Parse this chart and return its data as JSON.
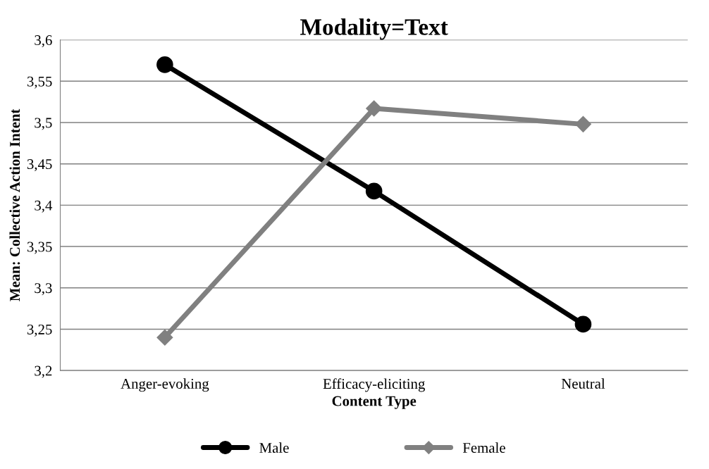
{
  "chart_data": {
    "type": "line",
    "title": "Modality=Text",
    "xlabel": "Content Type",
    "ylabel": "Mean: Collective Action Intent",
    "categories": [
      "Anger-evoking",
      "Efficacy-eliciting",
      "Neutral"
    ],
    "series": [
      {
        "name": "Male",
        "color": "#000000",
        "marker": "circle",
        "values": [
          3.57,
          3.417,
          3.256
        ]
      },
      {
        "name": "Female",
        "color": "#808080",
        "marker": "diamond",
        "values": [
          3.24,
          3.517,
          3.498
        ]
      }
    ],
    "ylim": [
      3.2,
      3.6
    ],
    "yticks": [
      {
        "value": 3.2,
        "label": "3,2"
      },
      {
        "value": 3.25,
        "label": "3,25"
      },
      {
        "value": 3.3,
        "label": "3,3"
      },
      {
        "value": 3.35,
        "label": "3,35"
      },
      {
        "value": 3.4,
        "label": "3,4"
      },
      {
        "value": 3.45,
        "label": "3,45"
      },
      {
        "value": 3.5,
        "label": "3,5"
      },
      {
        "value": 3.55,
        "label": "3,55"
      },
      {
        "value": 3.6,
        "label": "3,6"
      }
    ],
    "grid": "y",
    "legend": "bottom",
    "line_style": "solid"
  }
}
